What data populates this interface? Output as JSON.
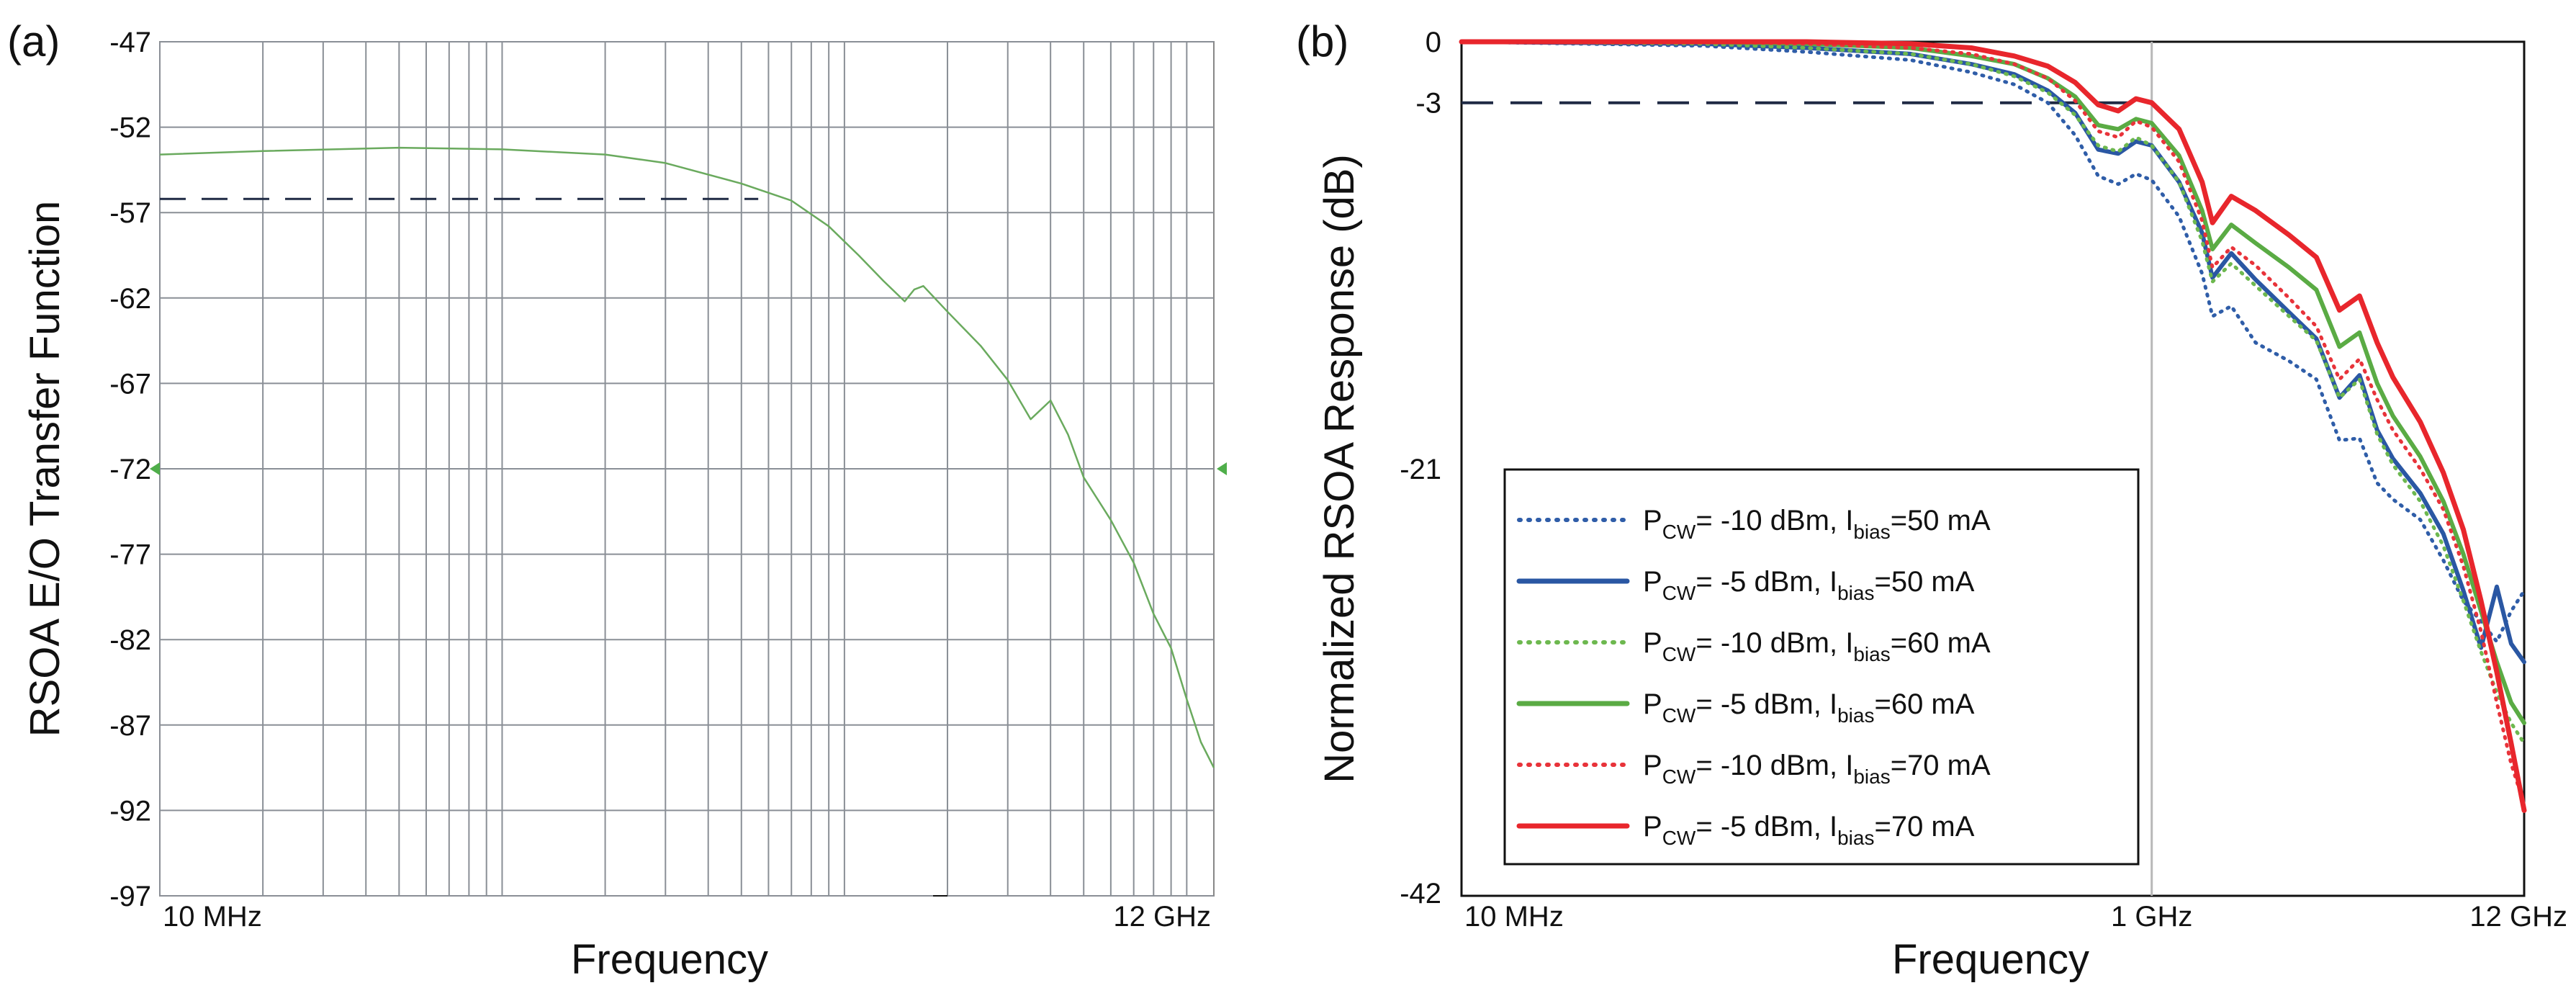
{
  "chart_data": [
    {
      "panel": "(a)",
      "type": "line",
      "title": "",
      "xlabel": "Frequency",
      "ylabel": "RSOA E/O Transfer Function",
      "xscale": "log",
      "xlim_hz": [
        10000000,
        12000000000
      ],
      "ylim": [
        -97,
        -47
      ],
      "yticks": [
        -47,
        -52,
        -57,
        -62,
        -67,
        -72,
        -77,
        -82,
        -87,
        -92,
        -97
      ],
      "ytick_labels": [
        "-47",
        "-52",
        "-57",
        "-62",
        "-67",
        "-72",
        "-77",
        "-82",
        "-87",
        "-92",
        "-97"
      ],
      "xtick_labels": [
        "10 MHz",
        "12 GHz"
      ],
      "grid": true,
      "reference_marker_level": -72,
      "dashed_reference": {
        "y": -56.2,
        "x_end_hz": 560000000
      },
      "series": [
        {
          "name": "E/O response",
          "color": "#6aaa5e",
          "x_hz": [
            10000000,
            20000000,
            50000000,
            100000000,
            200000000,
            300000000,
            500000000,
            700000000,
            900000000,
            1100000000,
            1300000000,
            1500000000,
            1600000000,
            1700000000,
            2000000000,
            2500000000,
            3000000000,
            3500000000,
            4000000000,
            4500000000,
            5000000000,
            6000000000,
            7000000000,
            8000000000,
            9000000000,
            10000000000,
            11000000000,
            12000000000
          ],
          "values": [
            -53.6,
            -53.4,
            -53.2,
            -53.3,
            -53.6,
            -54.1,
            -55.3,
            -56.3,
            -57.8,
            -59.5,
            -61.0,
            -62.2,
            -61.5,
            -61.3,
            -62.8,
            -64.8,
            -66.8,
            -69.1,
            -68.0,
            -70.0,
            -72.5,
            -75.0,
            -77.5,
            -80.5,
            -82.5,
            -85.5,
            -88.0,
            -89.5
          ]
        }
      ]
    },
    {
      "panel": "(b)",
      "type": "line",
      "title": "",
      "xlabel": "Frequency",
      "ylabel": "Normalized RSOA Response (dB)",
      "xscale": "log",
      "xlim_hz": [
        10000000,
        12000000000
      ],
      "ylim": [
        -42,
        0
      ],
      "yticks": [
        0,
        -3,
        -21,
        -42
      ],
      "ytick_labels": [
        "0",
        "-3",
        "-21",
        "-42"
      ],
      "xtick_labels": [
        "10 MHz",
        "1 GHz",
        "12 GHz"
      ],
      "vertical_gridline_hz": 1000000000,
      "dashed_reference": {
        "y": -3,
        "x_end_hz": 900000000
      },
      "legend_position": "bottom-left",
      "x_hz": [
        10000000,
        50000000,
        100000000,
        200000000,
        300000000,
        400000000,
        500000000,
        600000000,
        700000000,
        800000000,
        900000000,
        1000000000,
        1200000000,
        1400000000,
        1500000000,
        1700000000,
        2000000000,
        2500000000,
        3000000000,
        3500000000,
        4000000000,
        4500000000,
        5000000000,
        6000000000,
        7000000000,
        8000000000,
        9000000000,
        10000000000,
        11000000000,
        12000000000
      ],
      "series": [
        {
          "name": "P_CW= -10 dBm, I_bias=50 mA",
          "label_parts": [
            "P",
            "CW",
            "= -10 dBm, I",
            "bias",
            "=50 mA"
          ],
          "color": "#2f5da8",
          "style": "dotted",
          "values": [
            0,
            -0.2,
            -0.5,
            -0.9,
            -1.5,
            -2.1,
            -3.0,
            -4.6,
            -6.6,
            -7.0,
            -6.5,
            -6.8,
            -8.6,
            -11.4,
            -13.5,
            -13.0,
            -14.8,
            -15.7,
            -16.6,
            -19.6,
            -19.5,
            -21.7,
            -22.5,
            -23.5,
            -25.5,
            -27.5,
            -28.5,
            -29.5,
            -28.0,
            -27.0
          ]
        },
        {
          "name": "P_CW= -5 dBm, I_bias=50 mA",
          "label_parts": [
            "P",
            "CW",
            "= -5 dBm, I",
            "bias",
            "=50 mA"
          ],
          "color": "#2a57a3",
          "style": "solid",
          "values": [
            0,
            -0.1,
            -0.3,
            -0.6,
            -1.1,
            -1.6,
            -2.4,
            -3.5,
            -5.3,
            -5.5,
            -4.9,
            -5.1,
            -6.9,
            -9.4,
            -11.6,
            -10.4,
            -11.7,
            -13.3,
            -14.6,
            -17.5,
            -16.4,
            -19.1,
            -20.5,
            -22.2,
            -24.2,
            -27.0,
            -29.8,
            -26.8,
            -29.6,
            -30.5
          ]
        },
        {
          "name": "P_CW= -10 dBm, I_bias=60 mA",
          "label_parts": [
            "P",
            "CW",
            "= -10 dBm, I",
            "bias",
            "=60 mA"
          ],
          "color": "#6db84f",
          "style": "dotted",
          "values": [
            0,
            -0.1,
            -0.3,
            -0.6,
            -1.1,
            -1.7,
            -2.5,
            -3.6,
            -5.1,
            -5.4,
            -4.7,
            -5.1,
            -6.9,
            -9.8,
            -11.8,
            -10.9,
            -12.0,
            -13.5,
            -14.7,
            -17.5,
            -16.6,
            -19.3,
            -20.8,
            -22.6,
            -24.8,
            -27.5,
            -30.0,
            -32.0,
            -33.5,
            -34.5
          ]
        },
        {
          "name": "P_CW= -5 dBm, I_bias=60 mA",
          "label_parts": [
            "P",
            "CW",
            "= -5 dBm, I",
            "bias",
            "=60 mA"
          ],
          "color": "#5aab44",
          "style": "solid",
          "values": [
            0,
            0,
            -0.1,
            -0.3,
            -0.7,
            -1.1,
            -1.8,
            -2.7,
            -4.1,
            -4.3,
            -3.8,
            -4.0,
            -5.6,
            -8.3,
            -10.2,
            -9.0,
            -9.9,
            -11.1,
            -12.2,
            -15.0,
            -14.3,
            -16.8,
            -18.4,
            -20.4,
            -22.6,
            -25.2,
            -28.0,
            -30.5,
            -32.5,
            -33.5
          ]
        },
        {
          "name": "P_CW= -10 dBm, I_bias=70 mA",
          "label_parts": [
            "P",
            "CW",
            "= -10 dBm, I",
            "bias",
            "=70 mA"
          ],
          "color": "#e8333a",
          "style": "dotted",
          "values": [
            0,
            0,
            -0.1,
            -0.3,
            -0.6,
            -1.1,
            -1.8,
            -2.9,
            -4.4,
            -4.7,
            -3.9,
            -4.2,
            -5.9,
            -8.8,
            -11.1,
            -10.1,
            -11.0,
            -12.6,
            -14.0,
            -16.6,
            -15.6,
            -17.6,
            -19.1,
            -21.0,
            -23.0,
            -25.8,
            -29.0,
            -32.5,
            -35.5,
            -37.5
          ]
        },
        {
          "name": "P_CW= -5 dBm, I_bias=70 mA",
          "label_parts": [
            "P",
            "CW",
            "= -5 dBm, I",
            "bias",
            "=70 mA"
          ],
          "color": "#e8262c",
          "style": "solid",
          "values": [
            0,
            0,
            0,
            -0.1,
            -0.3,
            -0.7,
            -1.2,
            -2.0,
            -3.1,
            -3.4,
            -2.8,
            -3.0,
            -4.3,
            -6.9,
            -8.9,
            -7.6,
            -8.3,
            -9.5,
            -10.6,
            -13.2,
            -12.5,
            -14.8,
            -16.5,
            -18.7,
            -21.2,
            -24.0,
            -27.5,
            -31.0,
            -34.5,
            -37.8
          ]
        }
      ]
    }
  ]
}
